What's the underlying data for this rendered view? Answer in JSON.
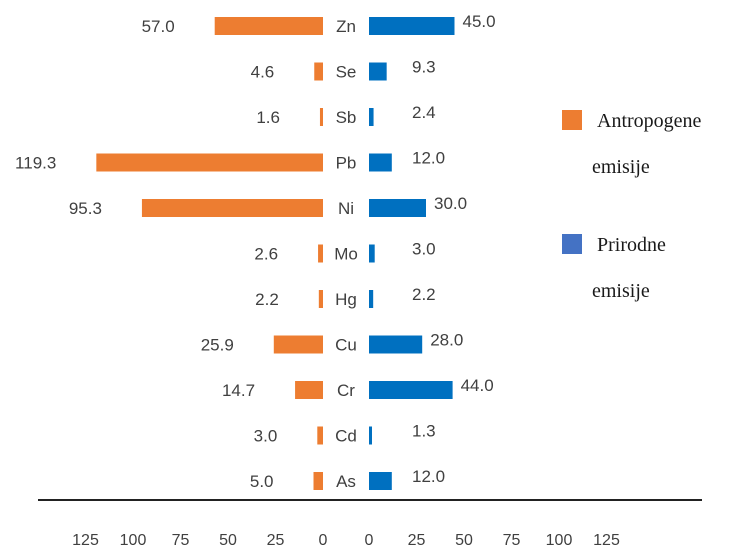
{
  "chart_data": {
    "type": "bar",
    "orientation": "horizontal",
    "layout": "butterfly",
    "categories": [
      "Zn",
      "Se",
      "Sb",
      "Pb",
      "Ni",
      "Mo",
      "Hg",
      "Cu",
      "Cr",
      "Cd",
      "As"
    ],
    "series": [
      {
        "name": "Antropogene emisije",
        "color": "#ed7d31",
        "side": "left",
        "values": [
          57.0,
          4.6,
          1.6,
          119.3,
          95.3,
          2.6,
          2.2,
          25.9,
          14.7,
          3.0,
          5.0
        ],
        "labels": [
          "57.0",
          "4.6",
          "1.6",
          "119.3",
          "95.3",
          "2.6",
          "2.2",
          "25.9",
          "14.7",
          "3.0",
          "5.0"
        ]
      },
      {
        "name": "Prirodne emisije",
        "color": "#0070c0",
        "side": "right",
        "values": [
          45.0,
          9.3,
          2.4,
          12.0,
          30.0,
          3.0,
          2.2,
          28.0,
          44.0,
          1.3,
          12.0
        ],
        "labels": [
          "45.0",
          "9.3",
          "2.4",
          "12.0",
          "30.0",
          "3.0",
          "2.2",
          "28.0",
          "44.0",
          "1.3",
          "12.0"
        ]
      }
    ],
    "xlim_left": [
      0,
      125
    ],
    "xlim_right": [
      0,
      125
    ],
    "x_ticks_left": [
      "125",
      "100",
      "75",
      "50",
      "25",
      "0"
    ],
    "x_ticks_right": [
      "0",
      "25",
      "50",
      "75",
      "100",
      "125"
    ],
    "legend": {
      "placement": "right",
      "items": [
        {
          "lines": [
            "Antropogene",
            "emisije"
          ],
          "color": "#ed7d31"
        },
        {
          "lines": [
            "Prirodne",
            "emisije"
          ],
          "color": "#4472c4"
        }
      ]
    },
    "grid": false
  }
}
